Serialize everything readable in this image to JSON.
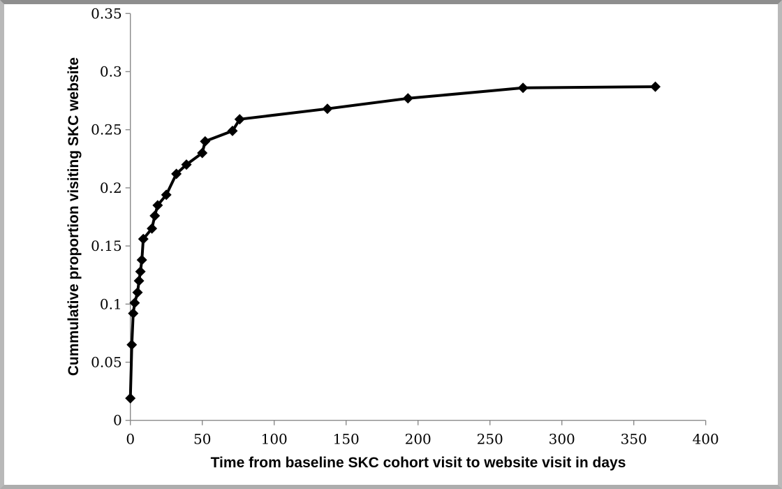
{
  "chart_data": {
    "type": "line",
    "title": "",
    "xlabel": "Time from baseline SKC cohort visit to website visit in days",
    "ylabel": "Cummulative proportion visiting SKC website",
    "xlim": [
      0,
      400
    ],
    "ylim": [
      0,
      0.35
    ],
    "x_ticks": [
      0,
      50,
      100,
      150,
      200,
      250,
      300,
      350,
      400
    ],
    "x_tick_labels": [
      "0",
      "50",
      "100",
      "150",
      "200",
      "250",
      "300",
      "350",
      "400"
    ],
    "y_ticks": [
      0,
      0.05,
      0.1,
      0.15,
      0.2,
      0.25,
      0.3,
      0.35
    ],
    "y_tick_labels": [
      "0",
      "0.05",
      "0.1",
      "0.15",
      "0.2",
      "0.25",
      "0.3",
      "0.35"
    ],
    "grid": false,
    "legend": false,
    "marker": "diamond",
    "line_color": "#000000",
    "axis_color": "#8a8a8a",
    "series": [
      {
        "name": "Cumulative proportion visiting SKC website",
        "points": [
          [
            0,
            0.019
          ],
          [
            1,
            0.065
          ],
          [
            2,
            0.092
          ],
          [
            3,
            0.101
          ],
          [
            5,
            0.11
          ],
          [
            6,
            0.12
          ],
          [
            7,
            0.128
          ],
          [
            8,
            0.138
          ],
          [
            9,
            0.156
          ],
          [
            15,
            0.165
          ],
          [
            17,
            0.176
          ],
          [
            19,
            0.185
          ],
          [
            25,
            0.194
          ],
          [
            32,
            0.212
          ],
          [
            39,
            0.22
          ],
          [
            50,
            0.23
          ],
          [
            52,
            0.24
          ],
          [
            71,
            0.249
          ],
          [
            76,
            0.259
          ],
          [
            137,
            0.268
          ],
          [
            193,
            0.277
          ],
          [
            273,
            0.286
          ],
          [
            365,
            0.287
          ]
        ]
      }
    ]
  }
}
